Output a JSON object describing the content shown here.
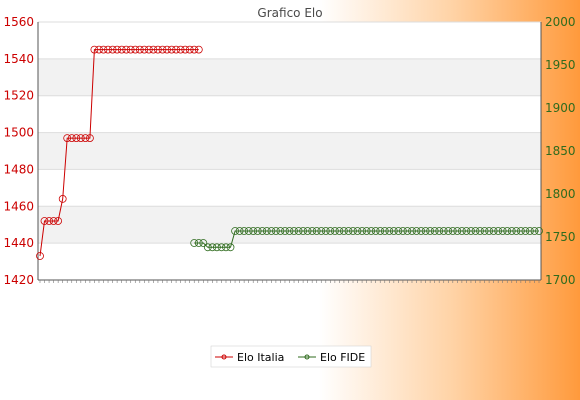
{
  "chart_data": {
    "type": "line",
    "title": "Grafico Elo",
    "legend_position": "bottom",
    "grid": true,
    "y_left": {
      "ylim": [
        1420,
        1560
      ],
      "ticks": [
        1420,
        1440,
        1460,
        1480,
        1500,
        1520,
        1540,
        1560
      ],
      "color": "#cc0000"
    },
    "y_right": {
      "ylim": [
        1700,
        2000
      ],
      "ticks": [
        1700,
        1750,
        1800,
        1850,
        1900,
        1950,
        2000
      ],
      "color": "#2f6b1e"
    },
    "x_count": 111,
    "series": [
      {
        "name": "Elo Italia",
        "axis": "left",
        "color": "#cc0000",
        "x": [
          0,
          1,
          2,
          3,
          4,
          5,
          6,
          7,
          8,
          9,
          10,
          11,
          12,
          13,
          14,
          15,
          16,
          17,
          18,
          19,
          20,
          21,
          22,
          23,
          24,
          25,
          26,
          27,
          28,
          29,
          30,
          31,
          32,
          33,
          34,
          35
        ],
        "values": [
          1433,
          1452,
          1452,
          1452,
          1452,
          1464,
          1497,
          1497,
          1497,
          1497,
          1497,
          1497,
          1545,
          1545,
          1545,
          1545,
          1545,
          1545,
          1545,
          1545,
          1545,
          1545,
          1545,
          1545,
          1545,
          1545,
          1545,
          1545,
          1545,
          1545,
          1545,
          1545,
          1545,
          1545,
          1545,
          1545
        ]
      },
      {
        "name": "Elo FIDE",
        "axis": "right",
        "color": "#2f6b1e",
        "x": [
          34,
          35,
          36,
          37,
          38,
          39,
          40,
          41,
          42,
          43,
          44,
          45,
          46,
          47,
          48,
          49,
          50,
          51,
          52,
          53,
          54,
          55,
          56,
          57,
          58,
          59,
          60,
          61,
          62,
          63,
          64,
          65,
          66,
          67,
          68,
          69,
          70,
          71,
          72,
          73,
          74,
          75,
          76,
          77,
          78,
          79,
          80,
          81,
          82,
          83,
          84,
          85,
          86,
          87,
          88,
          89,
          90,
          91,
          92,
          93,
          94,
          95,
          96,
          97,
          98,
          99,
          100,
          101,
          102,
          103,
          104,
          105,
          106,
          107,
          108,
          109,
          110
        ],
        "values": [
          1743,
          1743,
          1743,
          1738,
          1738,
          1738,
          1738,
          1738,
          1738,
          1757,
          1757,
          1757,
          1757,
          1757,
          1757,
          1757,
          1757,
          1757,
          1757,
          1757,
          1757,
          1757,
          1757,
          1757,
          1757,
          1757,
          1757,
          1757,
          1757,
          1757,
          1757,
          1757,
          1757,
          1757,
          1757,
          1757,
          1757,
          1757,
          1757,
          1757,
          1757,
          1757,
          1757,
          1757,
          1757,
          1757,
          1757,
          1757,
          1757,
          1757,
          1757,
          1757,
          1757,
          1757,
          1757,
          1757,
          1757,
          1757,
          1757,
          1757,
          1757,
          1757,
          1757,
          1757,
          1757,
          1757,
          1757,
          1757,
          1757,
          1757,
          1757,
          1757,
          1757,
          1757,
          1757,
          1757,
          1757
        ]
      }
    ]
  },
  "legend": {
    "label_italia": "Elo Italia",
    "label_fide": "Elo FIDE"
  }
}
